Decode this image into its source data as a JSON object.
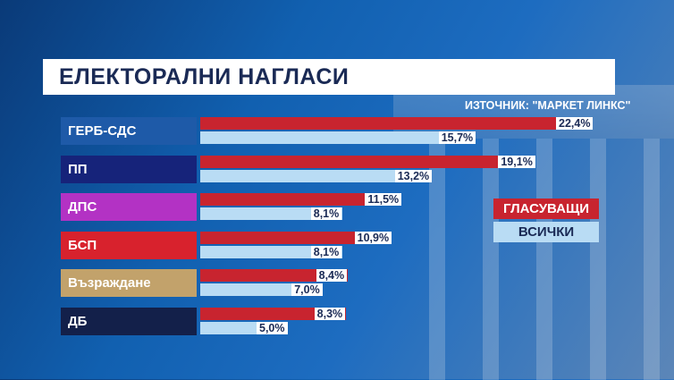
{
  "title": "ЕЛЕКТОРАЛНИ НАГЛАСИ",
  "source": "ИЗТОЧНИК: \"МАРКЕТ ЛИНКС\"",
  "legend": {
    "voters": "ГЛАСУВАЩИ",
    "all": "ВСИЧКИ"
  },
  "colors": {
    "voters": "#c8242f",
    "all": "#b9dcf4",
    "bg": "#1160b0"
  },
  "chart_data": {
    "type": "bar",
    "orientation": "horizontal",
    "categories": [
      "ГЕРБ-СДС",
      "ПП",
      "ДПС",
      "БСП",
      "Възраждане",
      "ДБ"
    ],
    "category_colors": [
      "#1e5aa8",
      "#16237a",
      "#b332c4",
      "#d8222d",
      "#c2a26b",
      "#13204a"
    ],
    "series": [
      {
        "name": "ГЛАСУВАЩИ",
        "values": [
          22.4,
          19.1,
          11.5,
          10.9,
          8.4,
          8.3
        ],
        "labels": [
          "22,4%",
          "19,1%",
          "11,5%",
          "10,9%",
          "8,4%",
          "8,3%"
        ]
      },
      {
        "name": "ВСИЧКИ",
        "values": [
          15.7,
          13.2,
          8.1,
          8.1,
          7.0,
          5.0
        ],
        "labels": [
          "15,7%",
          "13,2%",
          "8,1%",
          "8,1%",
          "7,0%",
          "5,0%"
        ]
      }
    ],
    "title": "ЕЛЕКТОРАЛНИ НАГЛАСИ",
    "legend_position": "right",
    "grid": false
  }
}
